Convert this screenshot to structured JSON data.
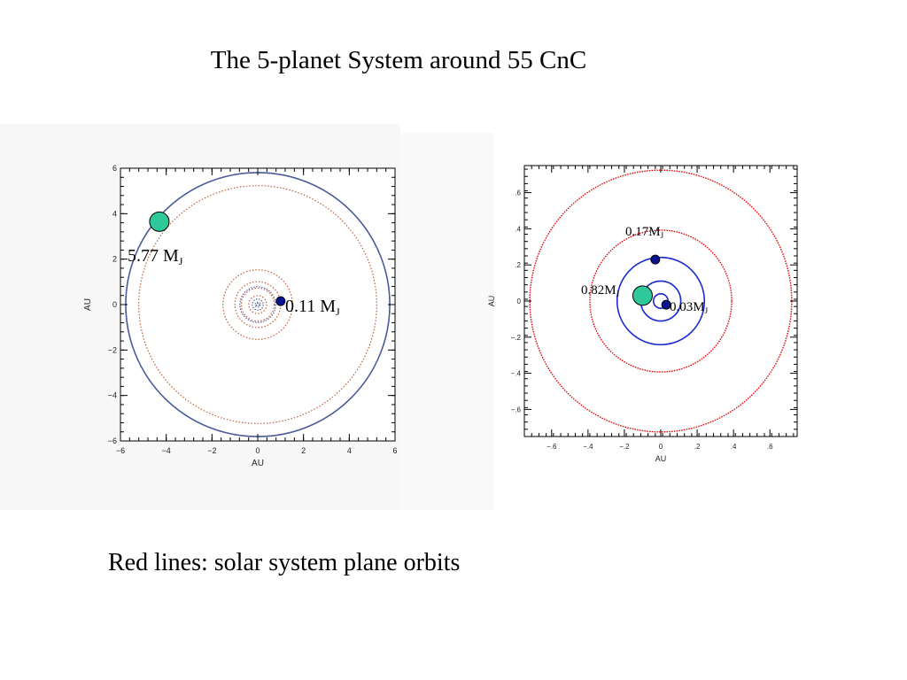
{
  "slide": {
    "title": "The 5-planet System around 55 CnC",
    "caption": "Red lines: solar system plane orbits"
  },
  "colors": {
    "outer_orbit": "#4a5a9a",
    "solar_orbit_left": "#c0603a",
    "solar_orbit_right": "#e01010",
    "inner_orbit_right": "#1a2ad0",
    "planet_green": "#2ec89a",
    "planet_blue": "#0a1490"
  },
  "chart_data": [
    {
      "type": "scatter",
      "xlabel": "AU",
      "ylabel": "AU",
      "xlim": [
        -6,
        6
      ],
      "ylim": [
        -6,
        6
      ],
      "xticks": [
        "−6",
        "−4",
        "−2",
        "0",
        "2",
        "4",
        "6"
      ],
      "yticks": [
        "−6",
        "−4",
        "−2",
        "0",
        "2",
        "4",
        "6"
      ],
      "series": [
        {
          "orbits_au": [
            5.77
          ]
        },
        {
          "orbits_au": [
            5.2,
            1.52,
            1.0,
            0.72,
            0.39
          ]
        },
        {
          "orbits_au": [
            0.78,
            0.24,
            0.11,
            0.04
          ]
        }
      ],
      "planets": [
        {
          "label": "5.77 M",
          "sub": "J",
          "x": -4.3,
          "y": 3.65
        },
        {
          "label": "0.11 M",
          "sub": "J",
          "x": 1.0,
          "y": 0.15
        }
      ]
    },
    {
      "type": "scatter",
      "xlabel": "AU",
      "ylabel": "AU",
      "xlim": [
        -0.75,
        0.75
      ],
      "ylim": [
        -0.75,
        0.75
      ],
      "xticks": [
        "−.6",
        "−.4",
        "−.2",
        "0",
        ".2",
        ".4",
        ".6"
      ],
      "yticks": [
        "−.6",
        "−.4",
        "−.2",
        "0",
        ".2",
        ".4",
        ".6"
      ],
      "series": [
        {
          "orbits_au": [
            0.72,
            0.39
          ]
        },
        {
          "orbits_au": [
            0.24,
            0.11,
            0.04
          ]
        }
      ],
      "planets": [
        {
          "label": "0.17M",
          "sub": "J",
          "x": -0.03,
          "y": 0.23
        },
        {
          "label": "0.82M",
          "sub": "J",
          "x": -0.1,
          "y": 0.03
        },
        {
          "label": "0.03M",
          "sub": "J",
          "x": 0.03,
          "y": -0.02
        }
      ]
    }
  ]
}
